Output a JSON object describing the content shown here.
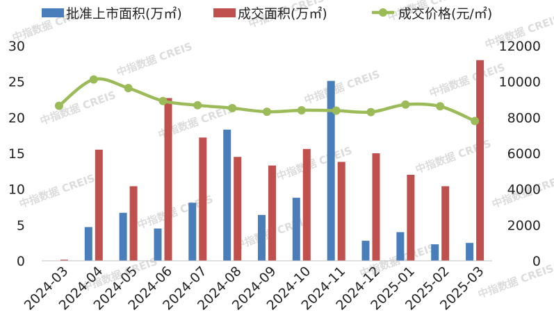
{
  "chart_data": {
    "type": "bar",
    "categories": [
      "2024-03",
      "2024-04",
      "2024-05",
      "2024-06",
      "2024-07",
      "2024-08",
      "2024-09",
      "2024-10",
      "2024-11",
      "2024-12",
      "2025-01",
      "2025-02",
      "2025-03"
    ],
    "series": [
      {
        "name": "批准上市面积(万㎡)",
        "axis": "left",
        "kind": "bar",
        "color": "#4a7ebb",
        "values": [
          0,
          4.7,
          6.7,
          4.5,
          8.1,
          18.3,
          6.4,
          8.8,
          25.1,
          2.8,
          4.0,
          2.3,
          2.5
        ]
      },
      {
        "name": "成交面积(万㎡)",
        "axis": "left",
        "kind": "bar",
        "color": "#c0504d",
        "values": [
          0.15,
          15.5,
          10.4,
          22.7,
          17.2,
          14.5,
          13.3,
          15.6,
          13.8,
          15.0,
          12.0,
          10.4,
          28.0
        ]
      },
      {
        "name": "成交价格(元/㎡)",
        "axis": "right",
        "kind": "line",
        "color": "#9bbb59",
        "values": [
          8650,
          10120,
          9640,
          8920,
          8680,
          8520,
          8320,
          8400,
          8380,
          8300,
          8720,
          8620,
          7800
        ]
      }
    ],
    "y_left": {
      "min": 0,
      "max": 30,
      "ticks": [
        0,
        5,
        10,
        15,
        20,
        25,
        30
      ]
    },
    "y_right": {
      "min": 0,
      "max": 12000,
      "ticks": [
        0,
        2000,
        4000,
        6000,
        8000,
        10000,
        12000
      ]
    },
    "legend_position": "top",
    "watermark": "中指数据  CREIS"
  }
}
